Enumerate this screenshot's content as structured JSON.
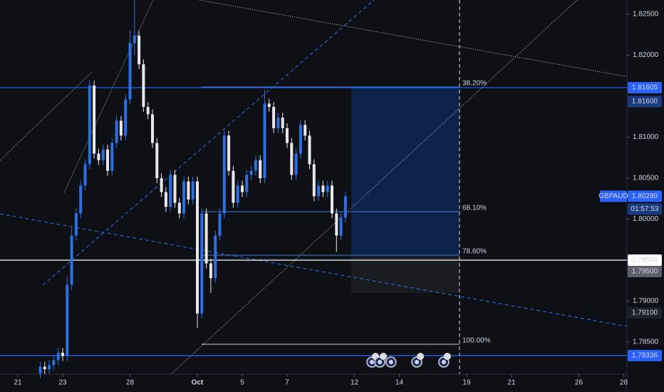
{
  "chart_data": {
    "type": "candlestick",
    "symbol": "GBPAUD",
    "countdown": "01:57:53",
    "up_color": "#2f6fe4",
    "down_color": "#e8e8e8",
    "x": [
      1.0,
      1.2,
      1.4,
      1.6,
      1.8,
      2.0,
      2.2,
      2.4,
      2.6,
      2.8,
      3.0,
      3.2,
      3.4,
      3.6,
      3.8,
      4.0,
      4.2,
      4.4,
      4.6,
      4.8,
      5.0,
      5.2,
      5.4,
      5.6,
      5.8,
      6.0,
      6.2,
      6.4,
      6.6,
      6.8,
      7.0,
      7.2,
      7.4,
      7.6,
      7.8,
      8.0,
      8.2,
      8.4,
      8.6,
      8.8,
      9.0,
      9.2,
      9.4,
      9.6,
      9.8,
      10.0,
      10.2,
      10.4,
      10.6,
      10.8,
      11.0,
      11.2,
      11.4,
      11.6,
      11.8,
      12.0,
      12.2,
      12.4,
      12.6,
      12.8,
      13.0,
      13.2,
      13.4,
      13.6,
      13.8,
      14.0,
      14.2,
      14.4,
      14.6
    ],
    "open": [
      1.7812,
      1.782,
      1.7817,
      1.7822,
      1.7828,
      1.7837,
      1.7833,
      1.792,
      1.798,
      1.8007,
      1.8041,
      1.8067,
      1.8163,
      1.808,
      1.8072,
      1.8085,
      1.8059,
      1.8093,
      1.812,
      1.8102,
      1.8146,
      1.8215,
      1.8224,
      1.8189,
      1.8137,
      1.8128,
      1.8093,
      1.805,
      1.8033,
      1.8015,
      1.8054,
      1.802,
      1.8007,
      1.8046,
      1.8024,
      1.8046,
      1.7885,
      1.8007,
      1.7946,
      1.7928,
      1.798,
      1.8007,
      1.8102,
      1.8059,
      1.802,
      1.8041,
      1.8033,
      1.8054,
      1.8059,
      1.8072,
      1.805,
      1.8141,
      1.8137,
      1.8111,
      1.8124,
      1.8111,
      1.8093,
      1.8054,
      1.808,
      1.8115,
      1.8102,
      1.8067,
      1.8028,
      1.8041,
      1.8033,
      1.8041,
      1.8007,
      1.798,
      1.8002
    ],
    "high": [
      1.7826,
      1.7826,
      1.7828,
      1.7834,
      1.7843,
      1.7843,
      1.793,
      1.799,
      1.8013,
      1.8047,
      1.8073,
      1.817,
      1.8169,
      1.8086,
      1.8091,
      1.8091,
      1.8099,
      1.8126,
      1.8126,
      1.8152,
      1.823,
      1.8267,
      1.823,
      1.8195,
      1.8143,
      1.8134,
      1.8099,
      1.8056,
      1.8039,
      1.806,
      1.806,
      1.8026,
      1.8052,
      1.8052,
      1.8052,
      1.8052,
      1.8013,
      1.8013,
      1.7952,
      1.7986,
      1.8013,
      1.8108,
      1.8108,
      1.8065,
      1.8047,
      1.8047,
      1.806,
      1.8065,
      1.8078,
      1.8078,
      1.8158,
      1.8147,
      1.8143,
      1.813,
      1.813,
      1.8117,
      1.8099,
      1.8086,
      1.8121,
      1.8121,
      1.8108,
      1.8073,
      1.8047,
      1.8047,
      1.8047,
      1.8047,
      1.8013,
      1.8008,
      1.8034
    ],
    "low": [
      1.7806,
      1.7811,
      1.7811,
      1.7816,
      1.7822,
      1.7827,
      1.7827,
      1.7914,
      1.7974,
      1.8001,
      1.8035,
      1.8061,
      1.8074,
      1.8066,
      1.8066,
      1.8053,
      1.8053,
      1.8087,
      1.8096,
      1.8096,
      1.814,
      1.82,
      1.8183,
      1.8131,
      1.8122,
      1.8087,
      1.8044,
      1.8027,
      1.8009,
      1.8009,
      1.8014,
      1.8001,
      1.8001,
      1.8018,
      1.8018,
      1.7867,
      1.7879,
      1.794,
      1.791,
      1.7922,
      1.7974,
      1.8001,
      1.8053,
      1.8014,
      1.8014,
      1.8027,
      1.8027,
      1.8048,
      1.8053,
      1.8044,
      1.8044,
      1.8131,
      1.8105,
      1.8105,
      1.8105,
      1.8087,
      1.8048,
      1.8048,
      1.8074,
      1.8096,
      1.8061,
      1.8022,
      1.8022,
      1.8027,
      1.8027,
      1.8001,
      1.796,
      1.7974,
      1.7996
    ],
    "close": [
      1.782,
      1.7817,
      1.7822,
      1.7828,
      1.7837,
      1.7833,
      1.792,
      1.798,
      1.8007,
      1.8041,
      1.8067,
      1.8163,
      1.808,
      1.8072,
      1.8085,
      1.8059,
      1.8093,
      1.812,
      1.8102,
      1.8146,
      1.8215,
      1.8224,
      1.8189,
      1.8137,
      1.8128,
      1.8093,
      1.805,
      1.8033,
      1.8015,
      1.8054,
      1.802,
      1.8007,
      1.8046,
      1.8024,
      1.8046,
      1.7885,
      1.8007,
      1.7946,
      1.7928,
      1.798,
      1.8007,
      1.8102,
      1.8059,
      1.802,
      1.8041,
      1.8033,
      1.8054,
      1.8059,
      1.8072,
      1.805,
      1.8141,
      1.8137,
      1.8111,
      1.8124,
      1.8111,
      1.8093,
      1.8054,
      1.808,
      1.8115,
      1.8102,
      1.8067,
      1.8028,
      1.8041,
      1.8033,
      1.8041,
      1.8007,
      1.798,
      1.8002,
      1.8028
    ],
    "xlim": [
      -0.794,
      27.143
    ],
    "xticks": [
      {
        "value": 0,
        "label": "21"
      },
      {
        "value": 2,
        "label": "23"
      },
      {
        "value": 5,
        "label": "28"
      },
      {
        "value": 8,
        "label": "Oct"
      },
      {
        "value": 10,
        "label": "5"
      },
      {
        "value": 12,
        "label": "7"
      },
      {
        "value": 15,
        "label": "12"
      },
      {
        "value": 17,
        "label": "14"
      },
      {
        "value": 20,
        "label": "19"
      },
      {
        "value": 22,
        "label": "21"
      },
      {
        "value": 25,
        "label": "26"
      },
      {
        "value": 27,
        "label": "28"
      }
    ],
    "ylim": [
      1.78109,
      1.82674
    ],
    "yticks": [
      {
        "value": 1.825,
        "label": "1.82500"
      },
      {
        "value": 1.82,
        "label": "1.82000"
      },
      {
        "value": 1.81,
        "label": "1.81000"
      },
      {
        "value": 1.805,
        "label": "1.80500"
      },
      {
        "value": 1.8,
        "label": "1.80000"
      },
      {
        "value": 1.79,
        "label": "1.79000"
      },
      {
        "value": 1.785,
        "label": "1.78500"
      }
    ],
    "fib_levels": [
      {
        "label": "38.20%",
        "price": 1.81613
      },
      {
        "label": "68.10%",
        "price": 1.80091
      },
      {
        "label": "78.60%",
        "price": 1.79561
      },
      {
        "label": "100.00%",
        "price": 1.78474
      }
    ],
    "badges": [
      {
        "value": 1.81605,
        "label": "1.81605",
        "bg": "#2962ff",
        "fg": "#ffffff",
        "line": true
      },
      {
        "value": 1.816,
        "label": "1.81600",
        "bg": "#1c3a80",
        "fg": "#ffffff",
        "line": false
      },
      {
        "value": 1.8028,
        "label": "1.80280",
        "bg": "#2962ff",
        "fg": "#ffffff",
        "line": false
      },
      {
        "value": 1.795,
        "label": "1.79500",
        "bg": "#ffffff",
        "fg": "#131722",
        "line": true
      },
      {
        "value": 1.795,
        "label": "1.79500",
        "bg": "#5d606b",
        "fg": "#ffffff",
        "line": false
      },
      {
        "value": 1.791,
        "label": "1.79100",
        "bg": "#1e222d",
        "fg": "#ffffff",
        "line": false
      },
      {
        "value": 1.78336,
        "label": "1.78336",
        "bg": "#2962ff",
        "fg": "#ffffff",
        "line": true
      }
    ],
    "events": [
      {
        "x": 15.78,
        "count": 3
      },
      {
        "x": 16.13,
        "count": 5
      },
      {
        "x": 16.63,
        "count": null
      },
      {
        "x": 17.78,
        "count": 3
      },
      {
        "x": 18.98,
        "count": 2
      }
    ]
  }
}
